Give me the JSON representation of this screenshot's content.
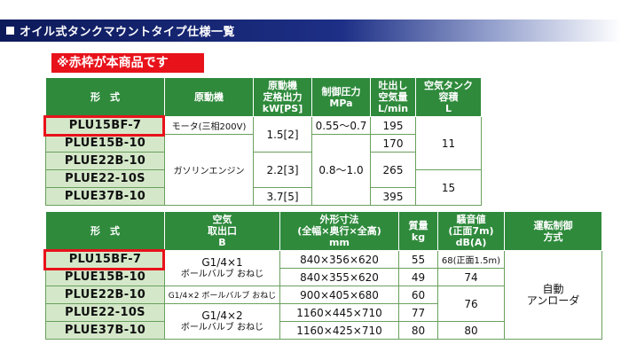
{
  "header": {
    "title": "オイル式タンクマウントタイプ仕様一覧"
  },
  "note": "※赤枠が本商品です",
  "table1": {
    "headers": {
      "model": "形　式",
      "motor": "原動機",
      "power": [
        "原動機",
        "定格出力",
        "kW[PS]"
      ],
      "pressure": [
        "制御圧力",
        "MPa"
      ],
      "flow": [
        "吐出し",
        "空気量",
        "L/min"
      ],
      "tank": [
        "空気タンク",
        "容積",
        "L"
      ]
    },
    "models": [
      "PLU15BF-7",
      "PLUE15B-10",
      "PLUE22B-10",
      "PLUE22-10S",
      "PLUE37B-10"
    ],
    "motor_electric": "モータ(三相200V)",
    "motor_gas": "ガソリンエンジン",
    "power_15": "1.5[2]",
    "power_22": "2.2[3]",
    "power_37": "3.7[5]",
    "pressure_a": "0.55～0.7",
    "pressure_b": "0.8～1.0",
    "flow": [
      "195",
      "170",
      "265",
      "395"
    ],
    "tank_a": "11",
    "tank_b": "15"
  },
  "table2": {
    "headers": {
      "model": "形　式",
      "outlet": [
        "空気",
        "取出口",
        "B"
      ],
      "dims": [
        "外形寸法",
        "(全幅×奥行×全高)",
        "mm"
      ],
      "mass": [
        "質量",
        "kg"
      ],
      "noise": [
        "騒音値",
        "(正面7m)",
        "dB(A)"
      ],
      "control": [
        "運転制御",
        "方式"
      ]
    },
    "models": [
      "PLU15BF-7",
      "PLUE15B-10",
      "PLUE22B-10",
      "PLUE22-10S",
      "PLUE37B-10"
    ],
    "outlet_a": [
      "G1/4×1",
      "ボールバルブ おねじ"
    ],
    "outlet_b": "G1/4×2 ボールバルブ おねじ",
    "outlet_c": [
      "G1/4×2",
      "ボールバルブ おねじ"
    ],
    "dims": [
      "840×356×620",
      "840×355×620",
      "900×405×680",
      "1160×445×710",
      "1160×425×710"
    ],
    "mass": [
      "55",
      "49",
      "60",
      "77",
      "80"
    ],
    "noise": [
      "68(正面1.5m)",
      "74",
      "76",
      "80"
    ],
    "control": [
      "自動",
      "アンローダ"
    ]
  }
}
